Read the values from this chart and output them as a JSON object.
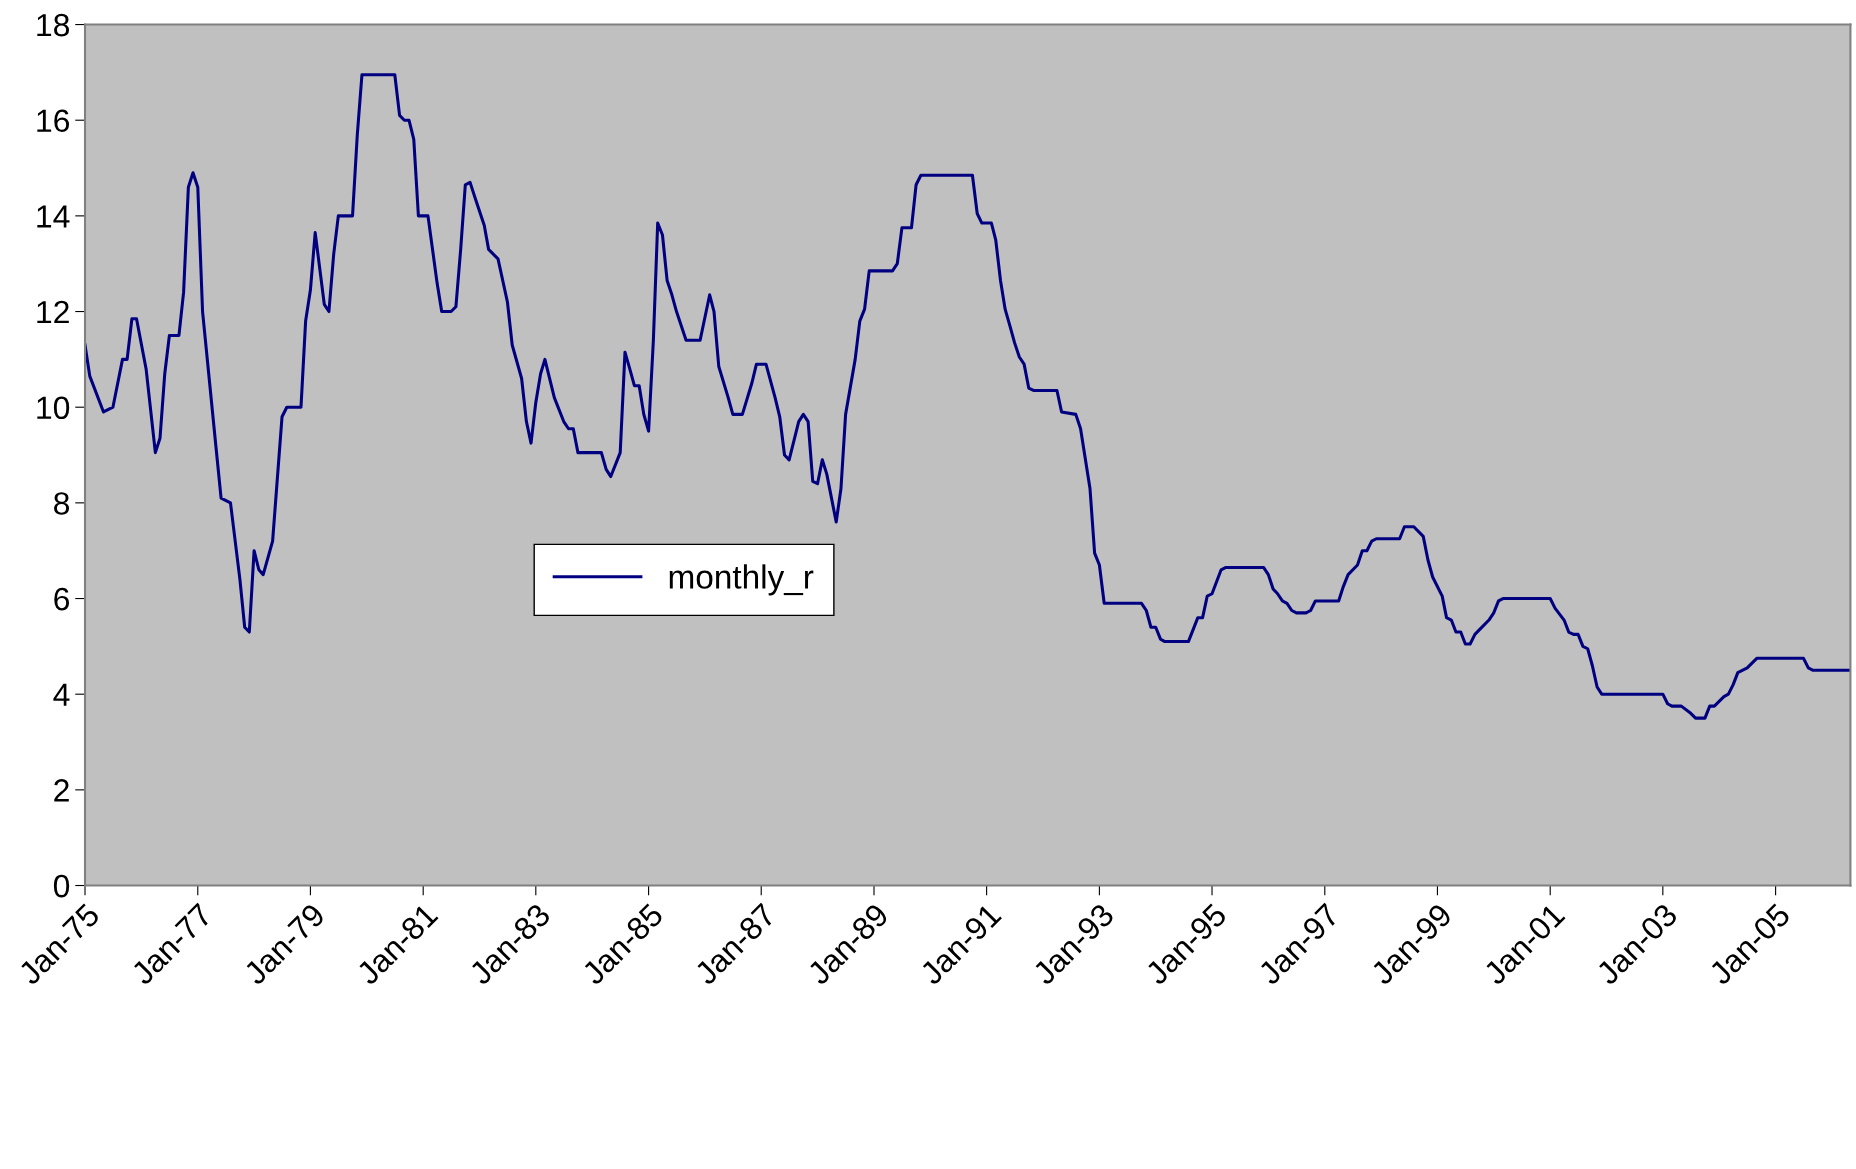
{
  "chart_data": {
    "type": "line",
    "series": [
      {
        "name": "monthly_r",
        "color": "#000080",
        "x": [
          "1975-01",
          "1975-02",
          "1975-05",
          "1975-07",
          "1975-09",
          "1975-10",
          "1975-11",
          "1975-12",
          "1976-02",
          "1976-04",
          "1976-05",
          "1976-06",
          "1976-07",
          "1976-09",
          "1976-10",
          "1976-11",
          "1976-12",
          "1977-01",
          "1977-02",
          "1977-05",
          "1977-06",
          "1977-08",
          "1977-10",
          "1977-11",
          "1977-12",
          "1978-01",
          "1978-02",
          "1978-03",
          "1978-05",
          "1978-07",
          "1978-08",
          "1978-11",
          "1978-12",
          "1979-01",
          "1979-02",
          "1979-04",
          "1979-05",
          "1979-06",
          "1979-07",
          "1979-10",
          "1979-11",
          "1979-12",
          "1980-07",
          "1980-08",
          "1980-09",
          "1980-10",
          "1980-11",
          "1980-12",
          "1981-02",
          "1981-04",
          "1981-05",
          "1981-07",
          "1981-08",
          "1981-09",
          "1981-10",
          "1981-11",
          "1981-12",
          "1982-02",
          "1982-03",
          "1982-05",
          "1982-07",
          "1982-08",
          "1982-10",
          "1982-11",
          "1982-12",
          "1983-01",
          "1983-02",
          "1983-03",
          "1983-05",
          "1983-07",
          "1983-08",
          "1983-09",
          "1983-10",
          "1984-03",
          "1984-04",
          "1984-05",
          "1984-07",
          "1984-08",
          "1984-09",
          "1984-10",
          "1984-11",
          "1984-12",
          "1985-01",
          "1985-02",
          "1985-03",
          "1985-04",
          "1985-05",
          "1985-06",
          "1985-07",
          "1985-09",
          "1985-12",
          "1986-02",
          "1986-03",
          "1986-04",
          "1986-06",
          "1986-07",
          "1986-09",
          "1986-11",
          "1986-12",
          "1987-02",
          "1987-04",
          "1987-05",
          "1987-06",
          "1987-07",
          "1987-09",
          "1987-10",
          "1987-11",
          "1987-12",
          "1988-01",
          "1988-02",
          "1988-03",
          "1988-05",
          "1988-06",
          "1988-07",
          "1988-09",
          "1988-10",
          "1988-11",
          "1988-12",
          "1989-05",
          "1989-06",
          "1989-07",
          "1989-09",
          "1989-10",
          "1989-11",
          "1990-10",
          "1990-11",
          "1990-12",
          "1991-02",
          "1991-03",
          "1991-04",
          "1991-05",
          "1991-06",
          "1991-07",
          "1991-08",
          "1991-09",
          "1991-10",
          "1991-11",
          "1992-04",
          "1992-05",
          "1992-08",
          "1992-09",
          "1992-11",
          "1992-12",
          "1993-01",
          "1993-02",
          "1993-10",
          "1993-11",
          "1993-12",
          "1994-01",
          "1994-02",
          "1994-03",
          "1994-08",
          "1994-10",
          "1994-11",
          "1994-12",
          "1995-01",
          "1995-03",
          "1995-04",
          "1995-12",
          "1996-01",
          "1996-02",
          "1996-03",
          "1996-04",
          "1996-05",
          "1996-06",
          "1996-07",
          "1996-09",
          "1996-10",
          "1996-11",
          "1997-04",
          "1997-05",
          "1997-06",
          "1997-08",
          "1997-09",
          "1997-10",
          "1997-11",
          "1997-12",
          "1998-05",
          "1998-06",
          "1998-08",
          "1998-10",
          "1998-11",
          "1998-12",
          "1999-02",
          "1999-03",
          "1999-04",
          "1999-05",
          "1999-06",
          "1999-07",
          "1999-08",
          "1999-09",
          "1999-10",
          "1999-12",
          "2000-01",
          "2000-02",
          "2000-03",
          "2001-01",
          "2001-02",
          "2001-04",
          "2001-05",
          "2001-06",
          "2001-07",
          "2001-08",
          "2001-09",
          "2001-10",
          "2001-11",
          "2001-12",
          "2003-01",
          "2003-02",
          "2003-03",
          "2003-05",
          "2003-07",
          "2003-08",
          "2003-10",
          "2003-11",
          "2003-12",
          "2004-02",
          "2004-03",
          "2004-04",
          "2004-05",
          "2004-07",
          "2004-09",
          "2005-07",
          "2005-08",
          "2005-09",
          "2006-05"
        ],
        "values": [
          11.3,
          10.65,
          9.9,
          10.0,
          11.0,
          11.0,
          11.85,
          11.85,
          10.8,
          9.05,
          9.35,
          10.7,
          11.5,
          11.5,
          12.4,
          14.6,
          14.9,
          14.6,
          12.0,
          9.1,
          8.1,
          8.0,
          6.4,
          5.4,
          5.3,
          7.0,
          6.6,
          6.5,
          7.2,
          9.8,
          10.0,
          10.0,
          11.8,
          12.45,
          13.65,
          12.15,
          12.0,
          13.2,
          14.0,
          14.0,
          15.7,
          16.95,
          16.95,
          16.1,
          16.0,
          16.0,
          15.6,
          14.0,
          14.0,
          12.6,
          12.0,
          12.0,
          12.1,
          13.3,
          14.65,
          14.7,
          14.4,
          13.8,
          13.3,
          13.1,
          12.2,
          11.3,
          10.6,
          9.7,
          9.25,
          10.1,
          10.7,
          11.0,
          10.2,
          9.7,
          9.55,
          9.55,
          9.05,
          9.05,
          8.7,
          8.55,
          9.05,
          11.15,
          10.8,
          10.45,
          10.45,
          9.85,
          9.5,
          11.4,
          13.85,
          13.6,
          12.65,
          12.35,
          12.0,
          11.4,
          11.4,
          12.35,
          12.0,
          10.85,
          10.2,
          9.85,
          9.85,
          10.5,
          10.9,
          10.9,
          10.2,
          9.8,
          9.0,
          8.9,
          9.7,
          9.85,
          9.7,
          8.45,
          8.4,
          8.9,
          8.6,
          7.6,
          8.3,
          9.85,
          11.0,
          11.8,
          12.05,
          12.85,
          12.85,
          13.0,
          13.75,
          13.75,
          14.65,
          14.85,
          14.85,
          14.05,
          13.85,
          13.85,
          13.5,
          12.65,
          12.05,
          11.7,
          11.35,
          11.05,
          10.9,
          10.4,
          10.35,
          10.35,
          9.9,
          9.85,
          9.55,
          8.3,
          6.95,
          6.7,
          5.9,
          5.9,
          5.75,
          5.4,
          5.4,
          5.15,
          5.1,
          5.1,
          5.6,
          5.6,
          6.05,
          6.1,
          6.6,
          6.65,
          6.65,
          6.5,
          6.2,
          6.1,
          5.95,
          5.9,
          5.75,
          5.7,
          5.7,
          5.75,
          5.95,
          5.95,
          6.25,
          6.5,
          6.7,
          7.0,
          7.0,
          7.2,
          7.25,
          7.25,
          7.5,
          7.5,
          7.3,
          6.8,
          6.45,
          6.05,
          5.6,
          5.55,
          5.3,
          5.3,
          5.05,
          5.05,
          5.25,
          5.35,
          5.55,
          5.7,
          5.95,
          6.0,
          6.0,
          5.8,
          5.55,
          5.3,
          5.25,
          5.25,
          5.0,
          4.95,
          4.6,
          4.15,
          4.0,
          4.0,
          3.8,
          3.75,
          3.75,
          3.6,
          3.5,
          3.5,
          3.75,
          3.75,
          3.95,
          4.0,
          4.2,
          4.45,
          4.55,
          4.75,
          4.75,
          4.55,
          4.5,
          4.5
        ]
      }
    ],
    "xlim": [
      "1975-01",
      "2006-05"
    ],
    "xticks": [
      {
        "value": "1975-01",
        "label": "Jan-75"
      },
      {
        "value": "1977-01",
        "label": "Jan-77"
      },
      {
        "value": "1979-01",
        "label": "Jan-79"
      },
      {
        "value": "1981-01",
        "label": "Jan-81"
      },
      {
        "value": "1983-01",
        "label": "Jan-83"
      },
      {
        "value": "1985-01",
        "label": "Jan-85"
      },
      {
        "value": "1987-01",
        "label": "Jan-87"
      },
      {
        "value": "1989-01",
        "label": "Jan-89"
      },
      {
        "value": "1991-01",
        "label": "Jan-91"
      },
      {
        "value": "1993-01",
        "label": "Jan-93"
      },
      {
        "value": "1995-01",
        "label": "Jan-95"
      },
      {
        "value": "1997-01",
        "label": "Jan-97"
      },
      {
        "value": "1999-01",
        "label": "Jan-99"
      },
      {
        "value": "2001-01",
        "label": "Jan-01"
      },
      {
        "value": "2003-01",
        "label": "Jan-03"
      },
      {
        "value": "2005-01",
        "label": "Jan-05"
      }
    ],
    "ylim": [
      0,
      18
    ],
    "yticks": [
      0,
      2,
      4,
      6,
      8,
      10,
      12,
      14,
      16,
      18
    ],
    "grid": false,
    "legend": "center left",
    "marker": "none",
    "line_style": "solid"
  }
}
